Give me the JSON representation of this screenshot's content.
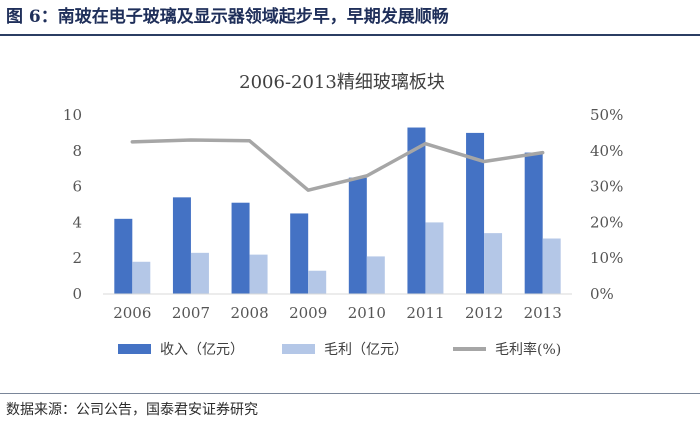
{
  "figure": {
    "title": "图 6：南玻在电子玻璃及显示器领域起步早，早期发展顺畅",
    "source": "数据来源：公司公告，国泰君安证券研究"
  },
  "chart_data": {
    "type": "bar",
    "title": "2006-2013精细玻璃板块",
    "categories": [
      "2006",
      "2007",
      "2008",
      "2009",
      "2010",
      "2011",
      "2012",
      "2013"
    ],
    "series": [
      {
        "name": "收入（亿元）",
        "type": "bar",
        "axis": "left",
        "color": "#4472c4",
        "values": [
          4.2,
          5.4,
          5.1,
          4.5,
          6.5,
          9.3,
          9.0,
          7.9
        ]
      },
      {
        "name": "毛利（亿元）",
        "type": "bar",
        "axis": "left",
        "color": "#b4c7e7",
        "values": [
          1.8,
          2.3,
          2.2,
          1.3,
          2.1,
          4.0,
          3.4,
          3.1
        ]
      },
      {
        "name": "毛利率(%)",
        "type": "line",
        "axis": "right",
        "color": "#a6a6a6",
        "values": [
          42.5,
          43,
          42.8,
          29,
          33,
          42,
          37,
          39.5
        ]
      }
    ],
    "yleft": {
      "range": [
        0,
        10
      ],
      "ticks": [
        "0",
        "2",
        "4",
        "6",
        "8",
        "10"
      ]
    },
    "yright": {
      "range": [
        0,
        50
      ],
      "ticks": [
        "0%",
        "10%",
        "20%",
        "30%",
        "40%",
        "50%"
      ]
    },
    "grid": false,
    "legend": "bottom"
  }
}
